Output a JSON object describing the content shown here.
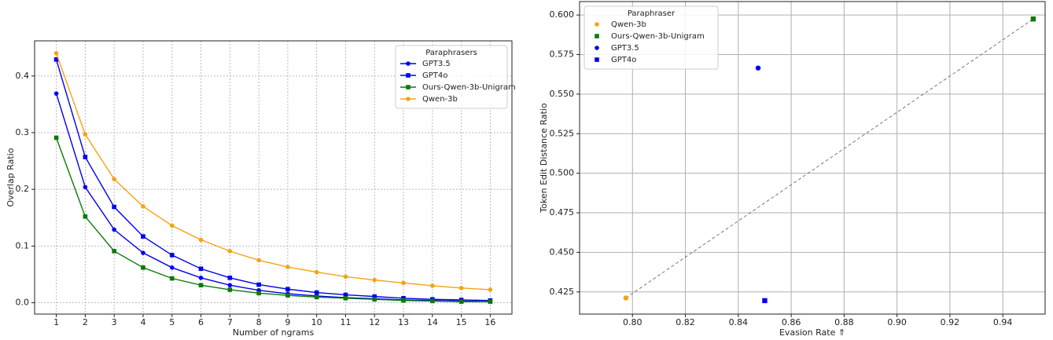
{
  "chart_data": [
    {
      "type": "line",
      "xlabel": "Number of ngrams",
      "ylabel": "Overlap Ratio",
      "x": [
        1,
        2,
        3,
        4,
        5,
        6,
        7,
        8,
        9,
        10,
        11,
        12,
        13,
        14,
        15,
        16
      ],
      "xlim": [
        0.25,
        16.75
      ],
      "xticks": [
        1,
        2,
        3,
        4,
        5,
        6,
        7,
        8,
        9,
        10,
        11,
        12,
        13,
        14,
        15,
        16
      ],
      "ylim": [
        -0.02,
        0.462
      ],
      "yticks": [
        {
          "value": 0,
          "label": "0.0"
        },
        {
          "value": 0.1,
          "label": "0.1"
        },
        {
          "value": 0.2,
          "label": "0.2"
        },
        {
          "value": 0.3,
          "label": "0.3"
        },
        {
          "value": 0.4,
          "label": "0.4"
        }
      ],
      "grid": true,
      "legend_title": "Paraphrasers",
      "legend": "upper right",
      "series": [
        {
          "name": "GPT3.5",
          "color": "#0000ee",
          "marker": "circle",
          "values": [
            0.369,
            0.204,
            0.129,
            0.088,
            0.062,
            0.044,
            0.031,
            0.022,
            0.016,
            0.012,
            0.009,
            0.007,
            0.005,
            0.004,
            0.003,
            0.002
          ]
        },
        {
          "name": "GPT4o",
          "color": "#0000ee",
          "marker": "square",
          "values": [
            0.429,
            0.257,
            0.169,
            0.117,
            0.084,
            0.06,
            0.044,
            0.032,
            0.024,
            0.018,
            0.014,
            0.011,
            0.008,
            0.006,
            0.005,
            0.004
          ]
        },
        {
          "name": "Ours-Qwen-3b-Unigram",
          "color": "#0a7a0a",
          "marker": "square",
          "values": [
            0.291,
            0.152,
            0.091,
            0.062,
            0.043,
            0.031,
            0.023,
            0.017,
            0.013,
            0.01,
            0.008,
            0.006,
            0.004,
            0.003,
            0.002,
            0.002
          ]
        },
        {
          "name": "Qwen-3b",
          "color": "#f5a314",
          "marker": "circle",
          "values": [
            0.44,
            0.297,
            0.218,
            0.17,
            0.136,
            0.111,
            0.091,
            0.075,
            0.063,
            0.054,
            0.046,
            0.04,
            0.035,
            0.03,
            0.026,
            0.023
          ]
        }
      ]
    },
    {
      "type": "scatter",
      "xlabel": "Evasion Rate ⇑",
      "ylabel": "Token Edit Distance Ratio",
      "xlim": [
        0.78,
        0.956
      ],
      "xticks": [
        {
          "value": 0.8,
          "label": "0.80"
        },
        0.82,
        0.84,
        0.86,
        0.88,
        {
          "value": 0.9,
          "label": "0.90"
        },
        0.92,
        0.94
      ],
      "ylim": [
        0.411,
        0.6085
      ],
      "yticks": [
        0.425,
        {
          "value": 0.45,
          "label": "0.450"
        },
        0.475,
        {
          "value": 0.5,
          "label": "0.500"
        },
        0.525,
        {
          "value": 0.55,
          "label": "0.550"
        },
        0.575,
        {
          "value": 0.6,
          "label": "0.600"
        }
      ],
      "grid": true,
      "legend_title": "Paraphraser",
      "legend": "upper left",
      "series": [
        {
          "name": "Qwen-3b",
          "color": "#f5a314",
          "marker": "circle",
          "x": [
            0.7975
          ],
          "values": [
            0.4212
          ]
        },
        {
          "name": "Ours-Qwen-3b-Unigram",
          "color": "#0a7a0a",
          "marker": "square",
          "x": [
            0.9515
          ],
          "values": [
            0.5975
          ]
        },
        {
          "name": "GPT3.5",
          "color": "#0000ee",
          "marker": "circle",
          "x": [
            0.8475
          ],
          "values": [
            0.5665
          ]
        },
        {
          "name": "GPT4o",
          "color": "#0000ee",
          "marker": "square",
          "x": [
            0.85
          ],
          "values": [
            0.4195
          ]
        }
      ]
    }
  ]
}
